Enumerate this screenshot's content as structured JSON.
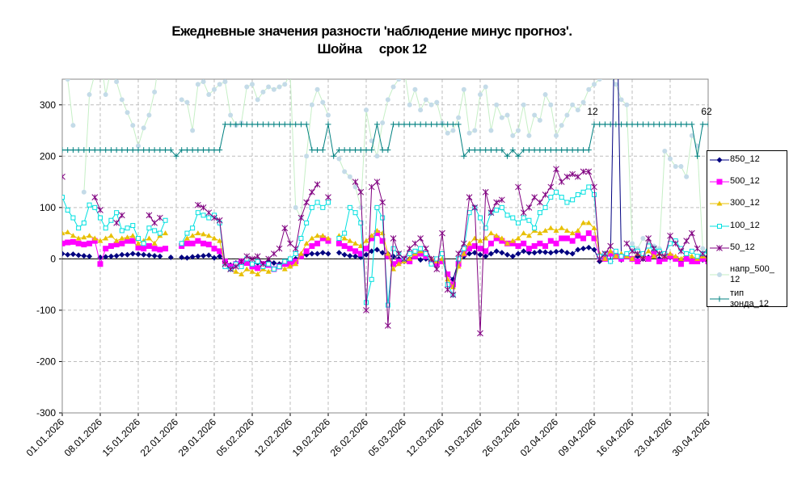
{
  "chart_data": {
    "type": "line",
    "title": "Ежедневные значения разности 'наблюдение минус прогноз'.",
    "subtitle": "Шойна     срок 12",
    "categories": [
      "01.01.2026",
      null,
      null,
      null,
      null,
      null,
      null,
      "08.01.2026",
      null,
      null,
      null,
      null,
      null,
      null,
      "15.01.2026",
      null,
      null,
      null,
      null,
      null,
      null,
      "22.01.2026",
      null,
      null,
      null,
      null,
      null,
      null,
      "29.01.2026",
      null,
      null,
      null,
      null,
      null,
      null,
      "05.02.2026",
      null,
      null,
      null,
      null,
      null,
      null,
      "12.02.2026",
      null,
      null,
      null,
      null,
      null,
      null,
      "19.02.2026",
      null,
      null,
      null,
      null,
      null,
      null,
      "26.02.2026",
      null,
      null,
      null,
      null,
      null,
      null,
      "05.03.2026",
      null,
      null,
      null,
      null,
      null,
      null,
      "12.03.2026",
      null,
      null,
      null,
      null,
      null,
      null,
      "19.03.2026",
      null,
      null,
      null,
      null,
      null,
      null,
      "26.03.2026",
      null,
      null,
      null,
      null,
      null,
      null,
      "02.04.2026",
      null,
      null,
      null,
      null,
      null,
      null,
      "09.04.2026",
      null,
      null,
      null,
      null,
      null,
      null,
      "16.04.2026",
      null,
      null,
      null,
      null,
      null,
      null,
      "23.04.2026",
      null,
      null,
      null,
      null,
      null,
      null,
      "30.04.2026"
    ],
    "ylim": [
      -300,
      350
    ],
    "yticks": [
      -300,
      -200,
      -100,
      0,
      100,
      200,
      300
    ],
    "grid": true,
    "annotations": [
      "12",
      "62"
    ],
    "series": [
      {
        "name": "напр_500_12",
        "color": "#c4dbe8",
        "line_color": "#c6efc6",
        "marker": "circle",
        "values": [
          370,
          350,
          260,
          null,
          130,
          320,
          360,
          400,
          320,
          370,
          345,
          310,
          285,
          260,
          220,
          255,
          280,
          325,
          400,
          390,
          null,
          null,
          310,
          305,
          250,
          340,
          345,
          320,
          330,
          340,
          345,
          280,
          260,
          265,
          335,
          340,
          310,
          325,
          335,
          330,
          335,
          340,
          360,
          100,
          80,
          200,
          300,
          330,
          305,
          280,
          null,
          195,
          170,
          160,
          140,
          100,
          290,
          230,
          200,
          265,
          310,
          335,
          350,
          370,
          300,
          330,
          290,
          310,
          300,
          305,
          265,
          245,
          250,
          275,
          330,
          245,
          250,
          320,
          335,
          250,
          300,
          275,
          280,
          240,
          250,
          300,
          240,
          280,
          270,
          320,
          300,
          240,
          260,
          280,
          300,
          290,
          305,
          330,
          340,
          350,
          360,
          355,
          340,
          310,
          300,
          30,
          20,
          40,
          30,
          25,
          20,
          210,
          195,
          180,
          180,
          160,
          240,
          220,
          20,
          15
        ]
      },
      {
        "name": "тип зонда_12",
        "color": "#008080",
        "marker": "plus",
        "values": [
          212,
          212,
          212,
          212,
          212,
          212,
          212,
          212,
          212,
          212,
          212,
          212,
          212,
          212,
          212,
          212,
          212,
          212,
          212,
          212,
          212,
          200,
          212,
          212,
          212,
          212,
          212,
          212,
          212,
          212,
          262,
          262,
          262,
          262,
          262,
          262,
          262,
          262,
          262,
          262,
          262,
          262,
          262,
          262,
          262,
          262,
          212,
          212,
          212,
          262,
          200,
          212,
          212,
          212,
          212,
          212,
          212,
          212,
          262,
          212,
          212,
          262,
          262,
          262,
          262,
          262,
          262,
          262,
          262,
          262,
          262,
          262,
          262,
          262,
          200,
          212,
          212,
          212,
          212,
          212,
          212,
          212,
          200,
          212,
          200,
          212,
          212,
          212,
          212,
          212,
          212,
          212,
          212,
          212,
          212,
          212,
          212,
          212,
          262,
          262,
          262,
          262,
          262,
          262,
          262,
          262,
          262,
          262,
          262,
          262,
          262,
          262,
          262,
          262,
          262,
          262,
          262,
          200,
          262,
          262
        ]
      },
      {
        "name": "850_12",
        "color": "#000080",
        "marker": "diamond",
        "values": [
          10,
          8,
          9,
          7,
          6,
          5,
          null,
          3,
          4,
          5,
          6,
          8,
          8,
          10,
          9,
          8,
          7,
          6,
          5,
          null,
          3,
          null,
          3,
          2,
          4,
          5,
          6,
          7,
          2,
          5,
          -5,
          -12,
          -8,
          -5,
          -3,
          -10,
          -8,
          -12,
          -5,
          -8,
          -10,
          -5,
          -5,
          0,
          5,
          8,
          10,
          10,
          12,
          10,
          null,
          12,
          8,
          6,
          5,
          3,
          8,
          15,
          18,
          12,
          10,
          5,
          0,
          -5,
          0,
          5,
          -2,
          0,
          -5,
          -8,
          -3,
          -30,
          -40,
          -5,
          5,
          10,
          12,
          8,
          5,
          10,
          15,
          12,
          8,
          5,
          10,
          15,
          12,
          12,
          14,
          13,
          12,
          14,
          15,
          12,
          10,
          18,
          20,
          22,
          18,
          -5,
          0,
          -5,
          600,
          -2,
          5,
          0,
          5,
          0,
          3,
          5,
          0,
          2,
          3,
          0,
          -5,
          0,
          -3,
          0,
          -2,
          5
        ]
      },
      {
        "name": "500_12",
        "color": "#ff00ff",
        "marker": "square",
        "values": [
          30,
          32,
          33,
          30,
          28,
          30,
          35,
          -10,
          20,
          25,
          28,
          30,
          35,
          35,
          22,
          20,
          25,
          20,
          18,
          20,
          null,
          null,
          25,
          30,
          30,
          35,
          30,
          28,
          20,
          15,
          -5,
          -15,
          -10,
          -5,
          -8,
          -15,
          -18,
          -10,
          -12,
          -20,
          -15,
          -10,
          -10,
          -5,
          5,
          15,
          25,
          30,
          40,
          35,
          null,
          30,
          25,
          20,
          15,
          10,
          20,
          40,
          50,
          35,
          5,
          -10,
          -5,
          0,
          -5,
          5,
          10,
          5,
          -5,
          -10,
          -5,
          -30,
          -50,
          -10,
          10,
          20,
          25,
          20,
          15,
          30,
          40,
          35,
          30,
          30,
          25,
          30,
          20,
          25,
          30,
          25,
          35,
          30,
          40,
          40,
          35,
          45,
          40,
          50,
          40,
          5,
          0,
          10,
          5,
          0,
          5,
          0,
          -5,
          5,
          0,
          10,
          -5,
          0,
          5,
          0,
          -10,
          0,
          -5,
          -5,
          0,
          -5
        ]
      },
      {
        "name": "300_12",
        "color": "#e8c000",
        "marker": "triangle",
        "values": [
          50,
          52,
          45,
          40,
          42,
          45,
          40,
          35,
          40,
          45,
          35,
          40,
          42,
          45,
          30,
          35,
          40,
          30,
          45,
          50,
          null,
          null,
          30,
          40,
          45,
          50,
          48,
          45,
          40,
          35,
          -10,
          -20,
          -25,
          -30,
          -20,
          -25,
          -30,
          -20,
          -25,
          -20,
          -15,
          -20,
          -15,
          -10,
          10,
          30,
          40,
          45,
          45,
          40,
          null,
          45,
          40,
          35,
          30,
          25,
          35,
          45,
          55,
          50,
          10,
          -20,
          -10,
          -5,
          0,
          10,
          15,
          10,
          0,
          -5,
          0,
          -40,
          -55,
          -15,
          10,
          30,
          40,
          35,
          40,
          50,
          45,
          40,
          30,
          35,
          40,
          50,
          45,
          55,
          50,
          55,
          60,
          55,
          60,
          55,
          50,
          55,
          70,
          70,
          60,
          10,
          0,
          15,
          5,
          10,
          5,
          0,
          10,
          5,
          15,
          5,
          10,
          5,
          10,
          5,
          0,
          10,
          5,
          0,
          5,
          0
        ]
      },
      {
        "name": "100_12",
        "color": "#00e0e0",
        "marker": "opensquare",
        "values": [
          120,
          95,
          80,
          60,
          70,
          105,
          100,
          80,
          60,
          75,
          90,
          55,
          60,
          65,
          40,
          30,
          60,
          55,
          50,
          75,
          null,
          null,
          30,
          50,
          60,
          90,
          85,
          80,
          85,
          70,
          -15,
          -20,
          -10,
          -15,
          0,
          -10,
          -5,
          -15,
          -10,
          -20,
          -15,
          -5,
          0,
          10,
          40,
          70,
          100,
          110,
          100,
          110,
          null,
          40,
          50,
          100,
          90,
          70,
          -85,
          -40,
          100,
          80,
          -90,
          20,
          10,
          0,
          10,
          15,
          20,
          10,
          -10,
          0,
          10,
          -50,
          -70,
          0,
          20,
          90,
          100,
          80,
          60,
          90,
          95,
          100,
          85,
          80,
          70,
          80,
          75,
          60,
          90,
          100,
          120,
          130,
          120,
          110,
          115,
          125,
          130,
          140,
          125,
          5,
          10,
          -5,
          15,
          5,
          10,
          20,
          15,
          10,
          25,
          20,
          15,
          10,
          30,
          35,
          20,
          10,
          15,
          5,
          10,
          15
        ]
      },
      {
        "name": "50_12",
        "color": "#800080",
        "marker": "star",
        "values": [
          160,
          null,
          null,
          null,
          null,
          null,
          120,
          95,
          null,
          null,
          70,
          85,
          null,
          null,
          null,
          null,
          85,
          70,
          80,
          null,
          null,
          null,
          null,
          null,
          null,
          105,
          100,
          90,
          80,
          75,
          -10,
          -20,
          -15,
          -5,
          5,
          0,
          5,
          -10,
          0,
          10,
          20,
          60,
          30,
          20,
          80,
          110,
          130,
          145,
          null,
          120,
          null,
          null,
          null,
          null,
          150,
          130,
          -100,
          140,
          150,
          110,
          -130,
          40,
          10,
          0,
          20,
          30,
          40,
          20,
          0,
          -20,
          50,
          -60,
          -70,
          10,
          30,
          120,
          100,
          -145,
          130,
          90,
          110,
          115,
          null,
          null,
          140,
          90,
          100,
          120,
          110,
          125,
          140,
          175,
          150,
          160,
          165,
          160,
          170,
          170,
          140,
          0,
          10,
          25,
          null,
          null,
          30,
          15,
          10,
          0,
          40,
          20,
          10,
          5,
          45,
          30,
          15,
          35,
          50,
          20,
          10,
          0
        ]
      }
    ]
  }
}
